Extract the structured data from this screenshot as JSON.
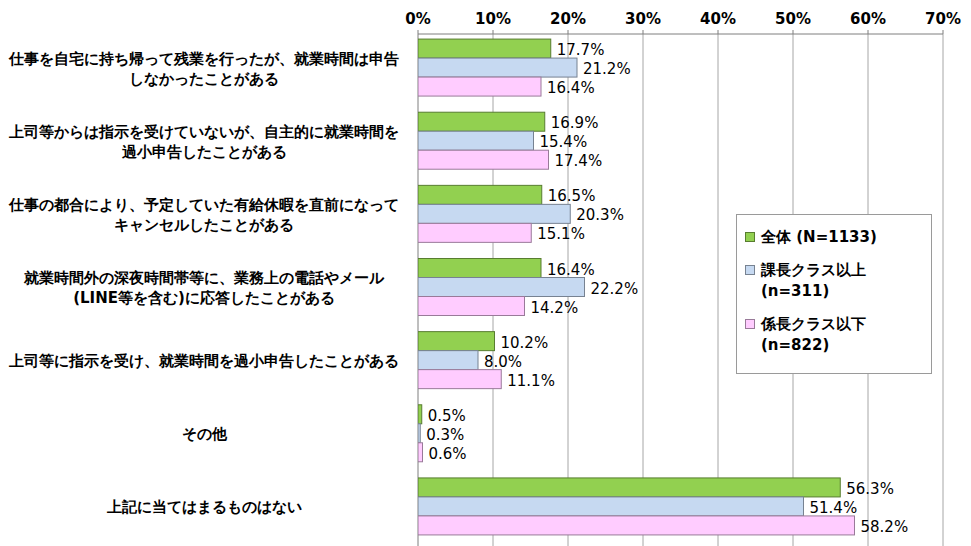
{
  "chart_data": {
    "type": "bar",
    "orientation": "horizontal",
    "categories": [
      "仕事を自宅に持ち帰って残業を行ったが、就業時間は申告しなかったことがある",
      "上司等からは指示を受けていないが、自主的に就業時間を過小申告したことがある",
      "仕事の都合により、予定していた有給休暇を直前になってキャンセルしたことがある",
      "就業時間外の深夜時間帯等に、業務上の電話やメール(LINE等を含む)に応答したことがある",
      "上司等に指示を受け、就業時間を過小申告したことがある",
      "その他",
      "上記に当てはまるものはない"
    ],
    "series": [
      {
        "name": "全体 (N=1133)",
        "color": "#92d050",
        "values": [
          17.7,
          16.9,
          16.5,
          16.4,
          10.2,
          0.5,
          56.3
        ],
        "value_labels": [
          "17.7%",
          "16.9%",
          "16.5%",
          "16.4%",
          "10.2%",
          "0.5%",
          "56.3%"
        ]
      },
      {
        "name": "課長クラス以上 (n=311)",
        "color": "#c6d9f1",
        "values": [
          21.2,
          15.4,
          20.3,
          22.2,
          8.0,
          0.3,
          51.4
        ],
        "value_labels": [
          "21.2%",
          "15.4%",
          "20.3%",
          "22.2%",
          "8.0%",
          "0.3%",
          "51.4%"
        ]
      },
      {
        "name": "係長クラス以下 (n=822)",
        "color": "#ffccff",
        "values": [
          16.4,
          17.4,
          15.1,
          14.2,
          11.1,
          0.6,
          58.2
        ],
        "value_labels": [
          "16.4%",
          "17.4%",
          "15.1%",
          "14.2%",
          "11.1%",
          "0.6%",
          "58.2%"
        ]
      }
    ],
    "xlim": [
      0,
      70
    ],
    "xticks": [
      {
        "value": 0,
        "label": "0%"
      },
      {
        "value": 10,
        "label": "10%"
      },
      {
        "value": 20,
        "label": "20%"
      },
      {
        "value": 30,
        "label": "30%"
      },
      {
        "value": 40,
        "label": "40%"
      },
      {
        "value": 50,
        "label": "50%"
      },
      {
        "value": 60,
        "label": "60%"
      },
      {
        "value": 70,
        "label": "70%"
      }
    ],
    "grid": true,
    "legend": "right",
    "data_labels": true
  }
}
